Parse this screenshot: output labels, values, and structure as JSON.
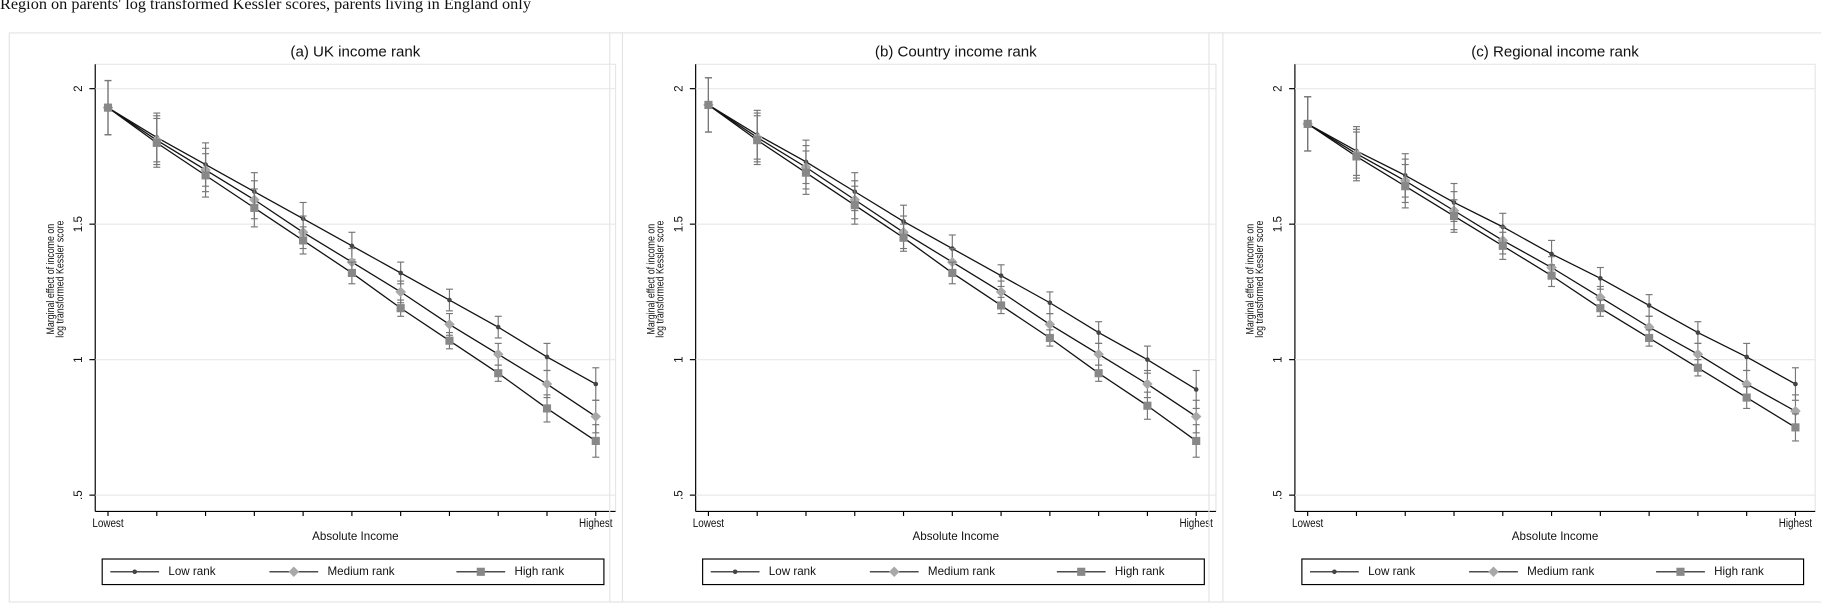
{
  "header": {
    "title": "Region on parents' log transformed Kessler scores, parents living in England only"
  },
  "chart_data": [
    {
      "type": "line",
      "title": "(a) UK income rank",
      "x_label": "Absolute Income",
      "y_label": [
        "Marginal effect of income on",
        "log transformed Kessler score"
      ],
      "categories": [
        "Lowest",
        null,
        null,
        null,
        null,
        null,
        null,
        null,
        null,
        null,
        "Highest"
      ],
      "ylim": [
        0.44,
        2.09
      ],
      "yticks": [
        {
          "value": 0.5,
          "label": ".5"
        },
        1,
        1.5,
        2
      ],
      "series": [
        {
          "name": "Low rank",
          "color": "#444444",
          "marker": "circle",
          "values": [
            1.93,
            1.82,
            1.72,
            1.62,
            1.52,
            1.42,
            1.32,
            1.22,
            1.12,
            1.01,
            0.91
          ],
          "errors": [
            0.1,
            0.09,
            0.08,
            0.07,
            0.06,
            0.05,
            0.04,
            0.04,
            0.04,
            0.05,
            0.06
          ]
        },
        {
          "name": "Medium rank",
          "color": "#a8a8a8",
          "marker": "diamond",
          "values": [
            1.93,
            1.81,
            1.7,
            1.59,
            1.47,
            1.36,
            1.25,
            1.13,
            1.02,
            0.91,
            0.79
          ],
          "errors": [
            0.1,
            0.09,
            0.08,
            0.07,
            0.06,
            0.05,
            0.04,
            0.04,
            0.04,
            0.05,
            0.06
          ]
        },
        {
          "name": "High rank",
          "color": "#888888",
          "marker": "square",
          "values": [
            1.93,
            1.8,
            1.68,
            1.56,
            1.44,
            1.32,
            1.19,
            1.07,
            0.95,
            0.82,
            0.7
          ],
          "errors": [
            0.1,
            0.09,
            0.08,
            0.07,
            0.05,
            0.04,
            0.03,
            0.03,
            0.03,
            0.05,
            0.06
          ]
        }
      ]
    },
    {
      "type": "line",
      "title": "(b) Country income rank",
      "x_label": "Absolute Income",
      "y_label": [
        "Marginal effect of income on",
        "log transformed Kessler score"
      ],
      "categories": [
        "Lowest",
        null,
        null,
        null,
        null,
        null,
        null,
        null,
        null,
        null,
        "Highest"
      ],
      "ylim": [
        0.44,
        2.09
      ],
      "yticks": [
        {
          "value": 0.5,
          "label": ".5"
        },
        1,
        1.5,
        2
      ],
      "series": [
        {
          "name": "Low rank",
          "color": "#444444",
          "marker": "circle",
          "values": [
            1.94,
            1.83,
            1.73,
            1.62,
            1.51,
            1.41,
            1.31,
            1.21,
            1.1,
            1.0,
            0.89
          ],
          "errors": [
            0.1,
            0.09,
            0.08,
            0.07,
            0.06,
            0.05,
            0.04,
            0.04,
            0.04,
            0.05,
            0.07
          ]
        },
        {
          "name": "Medium rank",
          "color": "#a8a8a8",
          "marker": "diamond",
          "values": [
            1.94,
            1.82,
            1.71,
            1.59,
            1.47,
            1.36,
            1.25,
            1.13,
            1.02,
            0.91,
            0.79
          ],
          "errors": [
            0.1,
            0.09,
            0.08,
            0.07,
            0.06,
            0.05,
            0.04,
            0.04,
            0.04,
            0.05,
            0.06
          ]
        },
        {
          "name": "High rank",
          "color": "#888888",
          "marker": "square",
          "values": [
            1.94,
            1.81,
            1.69,
            1.57,
            1.45,
            1.32,
            1.2,
            1.08,
            0.95,
            0.83,
            0.7
          ],
          "errors": [
            0.1,
            0.09,
            0.08,
            0.07,
            0.05,
            0.04,
            0.03,
            0.03,
            0.03,
            0.05,
            0.06
          ]
        }
      ]
    },
    {
      "type": "line",
      "title": "(c) Regional income rank",
      "x_label": "Absolute Income",
      "y_label": [
        "Marginal effect of income on",
        "log transformed Kessler score"
      ],
      "categories": [
        "Lowest",
        null,
        null,
        null,
        null,
        null,
        null,
        null,
        null,
        null,
        "Highest"
      ],
      "ylim": [
        0.44,
        2.09
      ],
      "yticks": [
        {
          "value": 0.5,
          "label": ".5"
        },
        1,
        1.5,
        2
      ],
      "series": [
        {
          "name": "Low rank",
          "color": "#444444",
          "marker": "circle",
          "values": [
            1.87,
            1.77,
            1.68,
            1.58,
            1.49,
            1.39,
            1.3,
            1.2,
            1.1,
            1.01,
            0.91
          ],
          "errors": [
            0.1,
            0.09,
            0.08,
            0.07,
            0.05,
            0.05,
            0.04,
            0.04,
            0.04,
            0.05,
            0.06
          ]
        },
        {
          "name": "Medium rank",
          "color": "#a8a8a8",
          "marker": "diamond",
          "values": [
            1.87,
            1.76,
            1.66,
            1.55,
            1.44,
            1.34,
            1.23,
            1.12,
            1.02,
            0.91,
            0.81
          ],
          "errors": [
            0.1,
            0.09,
            0.08,
            0.07,
            0.05,
            0.04,
            0.04,
            0.04,
            0.04,
            0.05,
            0.06
          ]
        },
        {
          "name": "High rank",
          "color": "#888888",
          "marker": "square",
          "values": [
            1.87,
            1.75,
            1.64,
            1.53,
            1.42,
            1.31,
            1.19,
            1.08,
            0.97,
            0.86,
            0.75
          ],
          "errors": [
            0.1,
            0.09,
            0.08,
            0.06,
            0.05,
            0.04,
            0.03,
            0.03,
            0.03,
            0.04,
            0.05
          ]
        }
      ]
    }
  ]
}
